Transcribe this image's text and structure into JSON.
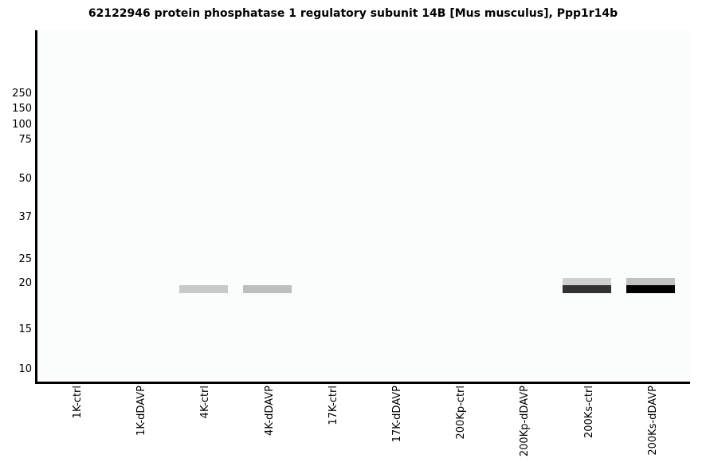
{
  "chart_data": {
    "type": "heatmap",
    "subtype": "western-blot-gel",
    "title": "62122946 protein phosphatase 1 regulatory subunit 14B [Mus musculus], Ppp1r14b",
    "lanes": [
      "1K-ctrl",
      "1K-dDAVP",
      "4K-ctrl",
      "4K-dDAVP",
      "17K-ctrl",
      "17K-dDAVP",
      "200Kp-ctrl",
      "200Kp-dDAVP",
      "200Ks-ctrl",
      "200Ks-dDAVP"
    ],
    "y_axis": {
      "tick_labels": [
        250,
        150,
        100,
        75,
        50,
        37,
        25,
        20,
        15,
        10
      ],
      "scale": "molecular-weight-markers"
    },
    "bands": [
      {
        "lane": "4K-ctrl",
        "mw": 19.3,
        "intensity": "light",
        "color": "#c8cac8"
      },
      {
        "lane": "4K-dDAVP",
        "mw": 19.3,
        "intensity": "light",
        "color": "#bdbfbd"
      },
      {
        "lane": "200Ks-ctrl",
        "mw": 20.4,
        "intensity": "light",
        "color": "#cfcfcf"
      },
      {
        "lane": "200Ks-ctrl",
        "mw": 19.3,
        "intensity": "strong",
        "color": "#323232"
      },
      {
        "lane": "200Ks-dDAVP",
        "mw": 20.4,
        "intensity": "light",
        "color": "#c1c1c1"
      },
      {
        "lane": "200Ks-dDAVP",
        "mw": 19.3,
        "intensity": "very-strong",
        "color": "#000000"
      }
    ],
    "layout_hints": {
      "legend": "none",
      "grid": "off",
      "frame": "left-and-bottom-spines-only"
    },
    "colors": {
      "axis": "#000000",
      "text": "#000000",
      "plot_background": "#fbfdfc",
      "page_background": "#ffffff"
    }
  }
}
